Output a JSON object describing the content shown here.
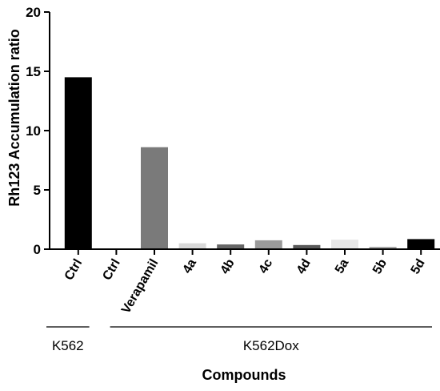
{
  "chart_data": {
    "type": "bar",
    "title": "",
    "xlabel": "Compounds",
    "ylabel": "Rh123 Accumulation ratio",
    "ylim": [
      0,
      20
    ],
    "yticks": [
      0,
      5,
      10,
      15,
      20
    ],
    "grid": false,
    "categories": [
      "Ctrl",
      "Ctrl",
      "Verapamil",
      "4a",
      "4b",
      "4c",
      "4d",
      "5a",
      "5b",
      "5d"
    ],
    "values": [
      14.5,
      0.05,
      8.6,
      0.5,
      0.4,
      0.75,
      0.35,
      0.8,
      0.2,
      0.85
    ],
    "bar_colors": [
      "#000000",
      "#000000",
      "#7a7a7a",
      "#d9d9d9",
      "#666666",
      "#9a9a9a",
      "#595959",
      "#e6e6e6",
      "#a6a6a6",
      "#000000"
    ],
    "groups": [
      {
        "label": "K562",
        "start": 0,
        "end": 0
      },
      {
        "label": "K562Dox",
        "start": 1,
        "end": 9
      }
    ]
  }
}
